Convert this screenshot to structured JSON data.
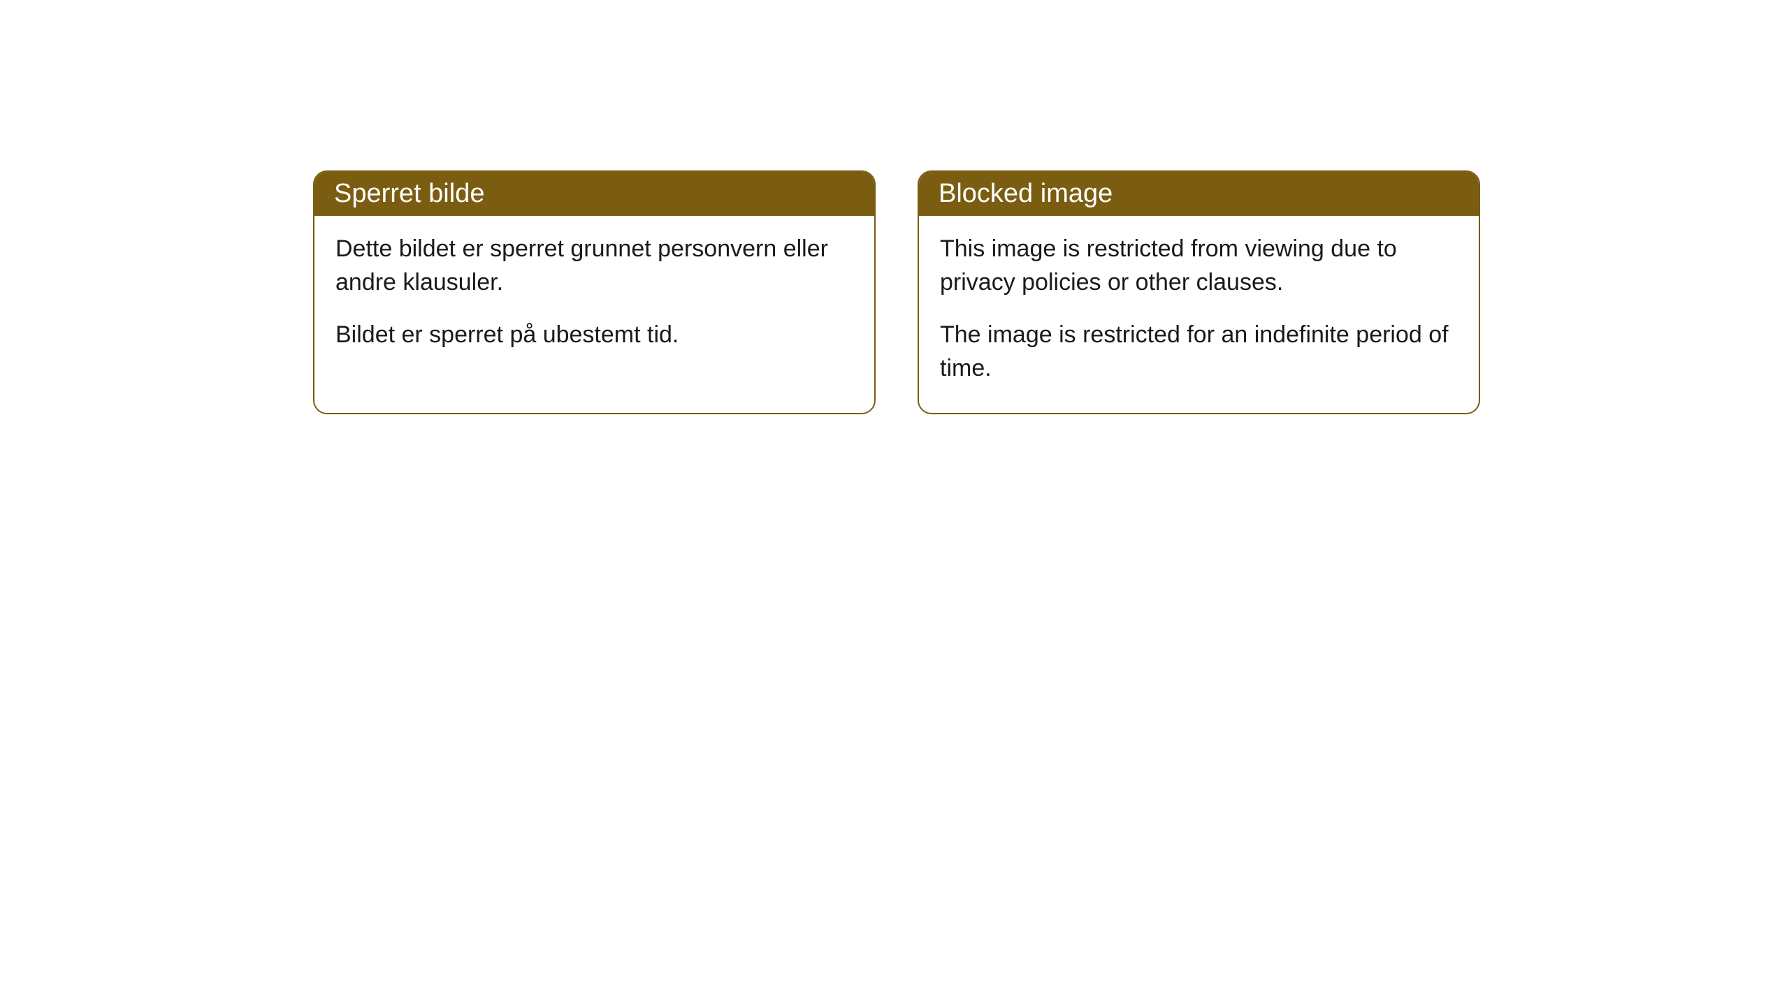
{
  "cards": [
    {
      "title": "Sperret bilde",
      "paragraph1": "Dette bildet er sperret grunnet personvern eller andre klausuler.",
      "paragraph2": "Bildet er sperret på ubestemt tid."
    },
    {
      "title": "Blocked image",
      "paragraph1": "This image is restricted from viewing due to privacy policies or other clauses.",
      "paragraph2": "The image is restricted for an indefinite period of time."
    }
  ],
  "style": {
    "header_bg": "#7a5d11",
    "header_text_color": "#ffffff",
    "border_color": "#7a5d11",
    "body_bg": "#ffffff",
    "body_text_color": "#1a1a1a",
    "border_radius": 20,
    "header_fontsize": 38,
    "body_fontsize": 34
  }
}
